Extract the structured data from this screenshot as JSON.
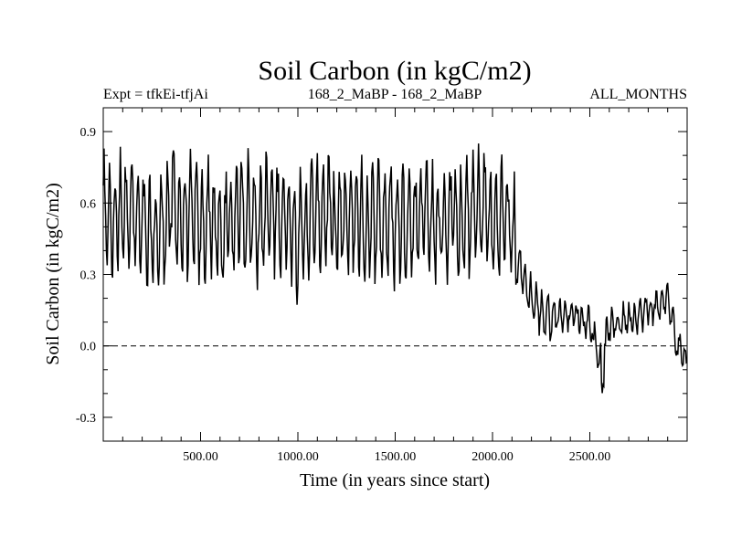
{
  "chart_data": {
    "type": "line",
    "title": "Soil Carbon (in kgC/m2)",
    "subtitle_left": "Expt = tfkEi-tfjAi",
    "subtitle_center": "168_2_MaBP - 168_2_MaBP",
    "subtitle_right": "ALL_MONTHS",
    "xlabel": "Time (in years since start)",
    "ylabel": "Soil Carbon (in kgC/m2)",
    "xlim": [
      0,
      3000
    ],
    "ylim": [
      -0.4,
      1.0
    ],
    "xticks": [
      500,
      1000,
      1500,
      2000,
      2500
    ],
    "xtick_labels": [
      "500.00",
      "1000.00",
      "1500.00",
      "2000.00",
      "2500.00"
    ],
    "yticks": [
      -0.3,
      0.0,
      0.3,
      0.6,
      0.9
    ],
    "ytick_labels": [
      "-0.3",
      "0.0",
      "0.3",
      "0.6",
      "0.9"
    ],
    "reference_line": {
      "y": 0.0,
      "style": "dashed"
    },
    "line_color": "#000000",
    "series": [
      {
        "x": [
          0,
          50,
          100,
          150,
          200,
          250,
          300,
          350,
          400,
          450,
          500,
          550,
          600,
          650,
          700,
          750,
          800,
          850,
          900,
          950,
          1000,
          1050,
          1100,
          1150,
          1200,
          1250,
          1300,
          1350,
          1400,
          1450,
          1500,
          1550,
          1600,
          1650,
          1700,
          1750,
          1800,
          1850,
          1900,
          1950,
          2000,
          2050,
          2100,
          2150,
          2200,
          2250,
          2300,
          2350,
          2400,
          2450,
          2500,
          2550,
          2600,
          2650,
          2700,
          2750,
          2800,
          2850,
          2900,
          2950,
          3000
        ],
        "y": [
          0.55,
          0.5,
          0.6,
          0.55,
          0.48,
          0.45,
          0.5,
          0.6,
          0.52,
          0.55,
          0.5,
          0.55,
          0.45,
          0.52,
          0.6,
          0.55,
          0.5,
          0.58,
          0.52,
          0.55,
          0.45,
          0.52,
          0.55,
          0.58,
          0.5,
          0.52,
          0.55,
          0.5,
          0.55,
          0.52,
          0.5,
          0.55,
          0.52,
          0.58,
          0.5,
          0.52,
          0.55,
          0.5,
          0.55,
          0.6,
          0.5,
          0.55,
          0.5,
          0.3,
          0.2,
          0.14,
          0.12,
          0.13,
          0.14,
          0.12,
          0.1,
          -0.05,
          0.08,
          0.1,
          0.12,
          0.13,
          0.15,
          0.17,
          0.2,
          0.0,
          -0.05
        ]
      }
    ]
  }
}
